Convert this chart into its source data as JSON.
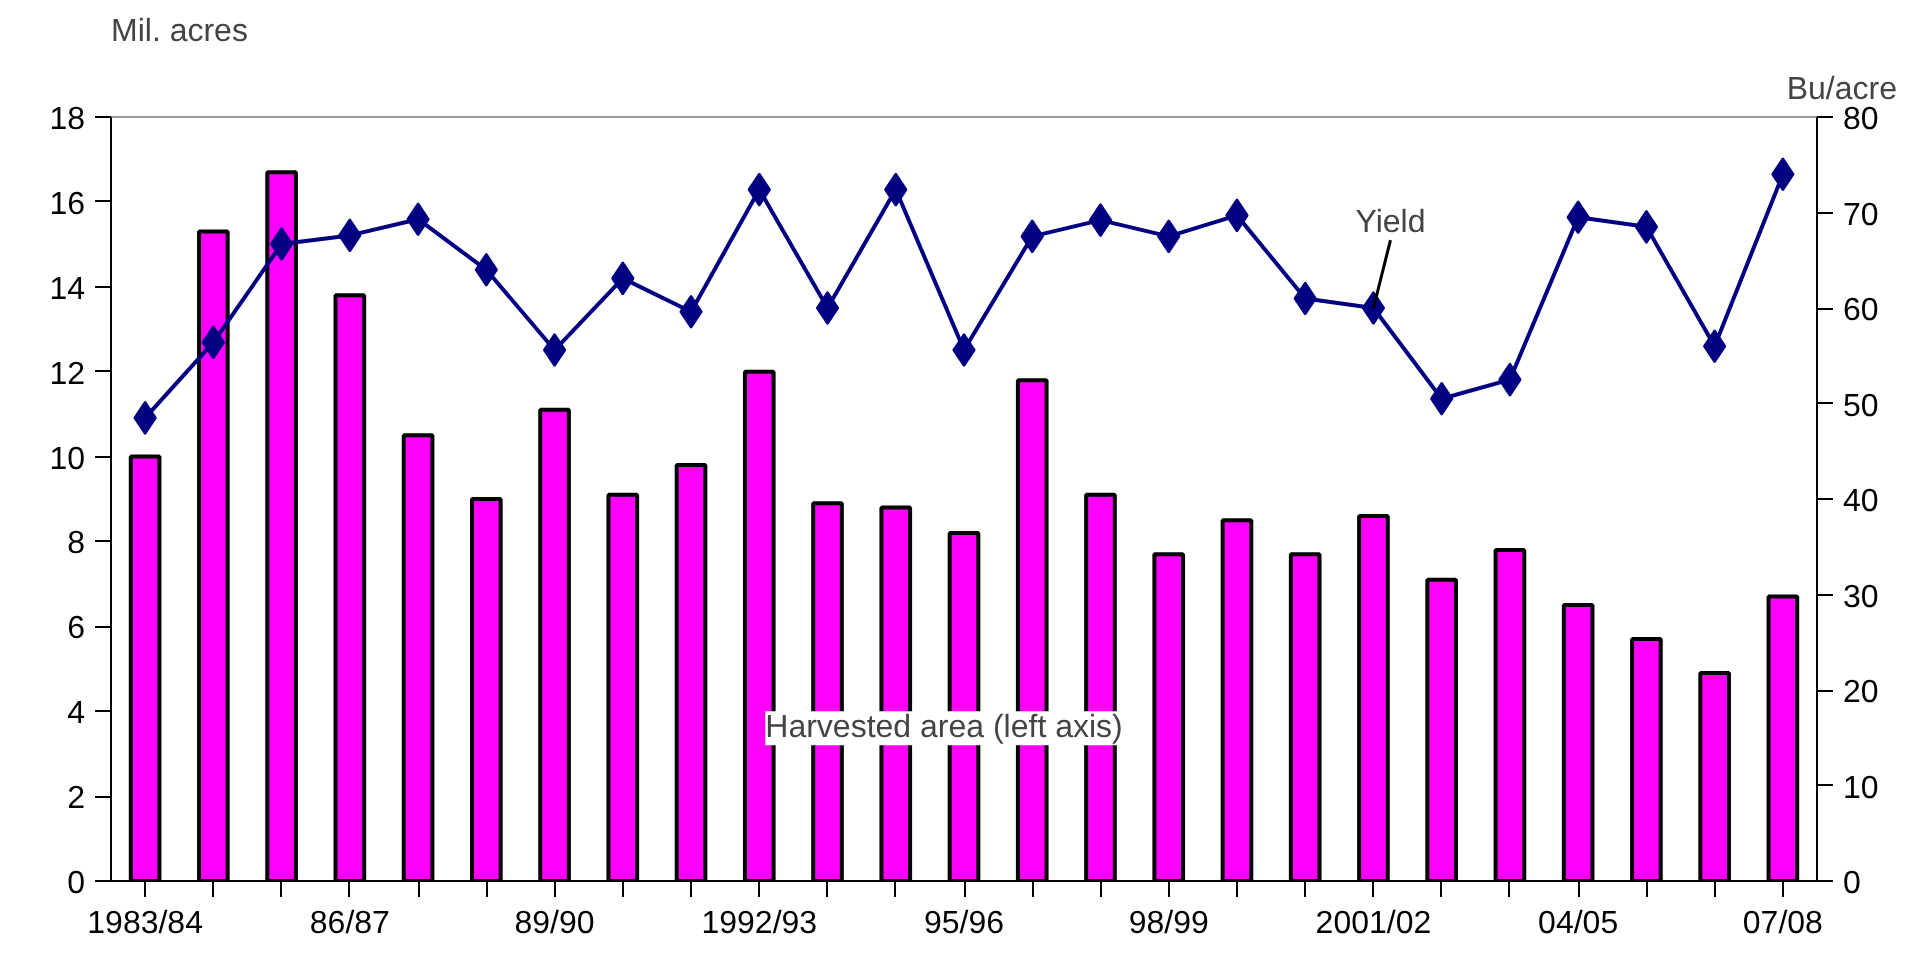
{
  "chart_data": {
    "type": "bar",
    "ylabel": "Mil. acres",
    "y2label": "Bu/acre",
    "categories": [
      "1983/84",
      null,
      null,
      "86/87",
      null,
      null,
      "89/90",
      null,
      null,
      "1992/93",
      null,
      null,
      "95/96",
      null,
      null,
      "98/99",
      null,
      null,
      "2001/02",
      null,
      null,
      "04/05",
      null,
      null,
      "07/08"
    ],
    "series": [
      {
        "color": "#ff00ff",
        "values": [
          10.0,
          15.3,
          16.7,
          13.8,
          10.5,
          9.0,
          11.1,
          9.1,
          9.8,
          12.0,
          8.9,
          8.8,
          8.2,
          11.8,
          9.1,
          7.7,
          8.5,
          7.7,
          8.6,
          7.1,
          7.8,
          6.5,
          5.7,
          4.9,
          6.7
        ]
      },
      {
        "type": "line",
        "axis": "y2",
        "color": "#000080",
        "marker": "diamond",
        "values": [
          48.5,
          56.4,
          66.7,
          67.6,
          69.3,
          64.0,
          55.6,
          63.1,
          59.6,
          72.4,
          60.0,
          72.4,
          55.6,
          67.5,
          69.2,
          67.5,
          69.7,
          61.0,
          60.0,
          50.5,
          52.5,
          69.5,
          68.5,
          56.0,
          74.0
        ]
      }
    ],
    "annotations": [
      {
        "text": "Yield",
        "x": "2001/02",
        "y": 13.5
      },
      "Harvested area (left axis)"
    ],
    "ylim": [
      0,
      18
    ],
    "yticks": [
      0,
      2,
      4,
      6,
      8,
      10,
      12,
      14,
      16,
      18
    ],
    "y2lim": [
      0,
      80
    ],
    "y2ticks": [
      0,
      10,
      20,
      30,
      40,
      50,
      60,
      70,
      80
    ],
    "grid": false
  }
}
